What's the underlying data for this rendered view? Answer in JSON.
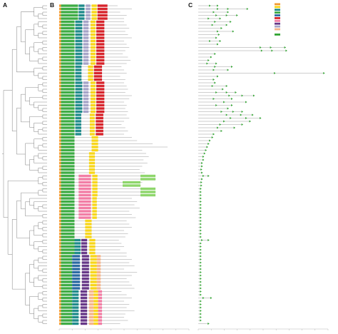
{
  "panels": {
    "a": "A",
    "b": "B",
    "c": "C"
  },
  "legend": {
    "motif_colors": [
      "#f29b2f",
      "#f8d61a",
      "#1f8b8b",
      "#3eac45",
      "#2b6aa3",
      "#d7232b",
      "#f27da5",
      "#673888",
      "#a6a4c8",
      "#f6b48a"
    ],
    "structure_color": "#33a533"
  },
  "b_axis": {
    "min": 0,
    "max": 1000
  },
  "c_axis": {
    "min": 0,
    "max": 10
  },
  "groups": [
    {
      "motifs": [
        [
          "#f29b2f",
          0,
          14
        ],
        [
          "#3eac45",
          14,
          145
        ],
        [
          "#1f8b8b",
          150,
          195
        ],
        [
          "#a6a4c8",
          205,
          240
        ],
        [
          "#f8d61a",
          250,
          290
        ],
        [
          "#d7232b",
          295,
          372
        ]
      ],
      "rows": [
        {
          "len": 450,
          "gene": 1.5,
          "marks": [
            0.9
          ]
        },
        {
          "len": 560,
          "gene": 3.8,
          "marks": [
            1.5,
            2.3
          ]
        },
        {
          "len": 470,
          "gene": 2.3,
          "marks": [
            1.2
          ]
        },
        {
          "len": 520,
          "gene": 3.0,
          "marks": [
            1.4,
            2.2
          ]
        },
        {
          "len": 500,
          "gene": 1.7,
          "marks": [
            0.8
          ]
        }
      ]
    },
    {
      "motifs": [
        [
          "#f29b2f",
          0,
          14
        ],
        [
          "#3eac45",
          14,
          118
        ],
        [
          "#1f8b8b",
          124,
          178
        ],
        [
          "#a6a4c8",
          186,
          226
        ],
        [
          "#f8d61a",
          242,
          280
        ],
        [
          "#d7232b",
          286,
          348
        ]
      ],
      "rows": [
        {
          "len": 500,
          "gene": 2.5,
          "marks": [
            1.3
          ]
        },
        {
          "len": 520,
          "gene": 2.2,
          "marks": [
            1.1
          ]
        },
        {
          "len": 540,
          "gene": 1.8
        },
        {
          "len": 510,
          "gene": 2.7,
          "marks": [
            1.5
          ]
        },
        {
          "len": 530,
          "gene": 1.6
        },
        {
          "len": 560,
          "gene": 1.4
        },
        {
          "len": 500,
          "gene": 1.7,
          "marks": [
            0.9
          ]
        },
        {
          "len": 520,
          "gene": 1.5
        },
        {
          "len": 540,
          "gene": 6.7,
          "marks": [
            4.8,
            5.6
          ]
        },
        {
          "len": 510,
          "gene": 6.8,
          "marks": [
            4.9,
            5.7
          ]
        },
        {
          "len": 490,
          "gene": 1.3
        },
        {
          "len": 530,
          "gene": 1.0
        },
        {
          "len": 550,
          "gene": 0.8
        },
        {
          "len": 520,
          "gene": 1.4,
          "marks": [
            0.7
          ]
        }
      ]
    },
    {
      "motifs": [
        [
          "#f29b2f",
          0,
          14
        ],
        [
          "#3eac45",
          14,
          118
        ],
        [
          "#1f8b8b",
          124,
          172
        ],
        [
          "#f8d61a",
          222,
          262
        ],
        [
          "#d7232b",
          268,
          330
        ]
      ],
      "rows": [
        {
          "len": 480,
          "gene": 2.6,
          "marks": [
            1.3
          ]
        },
        {
          "len": 500,
          "gene": 2.3,
          "marks": [
            1.2
          ]
        },
        {
          "len": 520,
          "gene": 9.7,
          "marks": [
            5.9
          ]
        },
        {
          "len": 470,
          "gene": 1.5
        },
        {
          "len": 510,
          "gene": 1.2
        }
      ]
    },
    {
      "motifs": [
        [
          "#f29b2f",
          0,
          14
        ],
        [
          "#3eac45",
          14,
          118
        ],
        [
          "#1f8b8b",
          124,
          178
        ],
        [
          "#a6a4c8",
          186,
          226
        ],
        [
          "#f8d61a",
          242,
          280
        ],
        [
          "#d7232b",
          286,
          348
        ]
      ],
      "rows": [
        {
          "len": 500,
          "gene": 1.3
        },
        {
          "len": 520,
          "gene": 2.2,
          "marks": [
            1.1
          ]
        },
        {
          "len": 530,
          "gene": 1.9
        },
        {
          "len": 510,
          "gene": 2.9,
          "marks": [
            1.4,
            2.2
          ]
        },
        {
          "len": 560,
          "gene": 4.3,
          "marks": [
            2.4,
            3.4
          ]
        },
        {
          "len": 540,
          "gene": 2.6,
          "marks": [
            1.2
          ]
        },
        {
          "len": 500,
          "gene": 3.7,
          "marks": [
            2.0
          ]
        },
        {
          "len": 520,
          "gene": 2.6,
          "marks": [
            1.4
          ]
        },
        {
          "len": 510,
          "gene": 2.3
        },
        {
          "len": 530,
          "gene": 3.4,
          "marks": [
            1.8,
            2.7
          ]
        }
      ]
    },
    {
      "motifs": [
        [
          "#f29b2f",
          0,
          14
        ],
        [
          "#3eac45",
          14,
          118
        ],
        [
          "#1f8b8b",
          124,
          170
        ],
        [
          "#f8d61a",
          236,
          274
        ],
        [
          "#d7232b",
          282,
          340
        ]
      ],
      "rows": [
        {
          "len": 520,
          "gene": 4.2,
          "marks": [
            2.2,
            3.3
          ]
        },
        {
          "len": 540,
          "gene": 4.8,
          "marks": [
            2.5,
            3.7
          ]
        },
        {
          "len": 500,
          "gene": 4.0,
          "marks": [
            2.0
          ]
        },
        {
          "len": 480,
          "gene": 3.4,
          "marks": [
            1.7
          ]
        },
        {
          "len": 510,
          "gene": 2.8,
          "marks": [
            1.5
          ]
        },
        {
          "len": 530,
          "gene": 1.8
        },
        {
          "len": 500,
          "gene": 1.2
        }
      ]
    },
    {
      "motifs": [
        [
          "#f29b2f",
          0,
          14
        ],
        [
          "#3eac45",
          14,
          118
        ],
        [
          "#f8d61a",
          250,
          300
        ]
      ],
      "rows": [
        {
          "len": 560,
          "gene": 1.1
        },
        {
          "len": 600,
          "gene": 0.9
        },
        {
          "len": 720,
          "gene": 0.8
        },
        {
          "len": 835,
          "gene": 0.7
        },
        {
          "len": 640,
          "gene": 0.6
        }
      ]
    },
    {
      "motifs": [
        [
          "#f29b2f",
          0,
          14
        ],
        [
          "#3eac45",
          14,
          118
        ],
        [
          "#f8d61a",
          230,
          275
        ]
      ],
      "rows": [
        {
          "len": 670,
          "gene": 0.5
        },
        {
          "len": 690,
          "gene": 0.4
        },
        {
          "len": 650,
          "gene": 0.4
        },
        {
          "len": 680,
          "gene": 0.3
        },
        {
          "len": 640,
          "gene": 0.3
        },
        {
          "len": 620,
          "gene": 0.25
        },
        {
          "len": 660,
          "gene": 0.3
        }
      ]
    },
    {
      "motifs": [
        [
          "#f29b2f",
          0,
          14
        ],
        [
          "#3eac45",
          14,
          118
        ],
        [
          "#f27da5",
          150,
          245
        ],
        [
          "#f8d61a",
          255,
          295
        ],
        [
          "#8ed66b",
          626,
          742
        ]
      ],
      "rows": [
        {
          "len": 742,
          "gene": 0.8,
          "marks": [
            0.4
          ]
        },
        {
          "len": 745,
          "gene": 0.3
        }
      ]
    },
    {
      "motifs": [
        [
          "#f29b2f",
          0,
          14
        ],
        [
          "#3eac45",
          14,
          118
        ],
        [
          "#f27da5",
          150,
          245
        ],
        [
          "#f8d61a",
          255,
          295
        ],
        [
          "#8ed66b",
          489,
          626
        ]
      ],
      "rows": [
        {
          "len": 640,
          "gene": 0.25
        },
        {
          "len": 630,
          "gene": 0.25
        }
      ]
    },
    {
      "motifs": [
        [
          "#f29b2f",
          0,
          14
        ],
        [
          "#3eac45",
          14,
          118
        ],
        [
          "#f27da5",
          150,
          245
        ],
        [
          "#f8d61a",
          255,
          295
        ],
        [
          "#8ed66b",
          626,
          742
        ]
      ],
      "rows": [
        {
          "len": 742,
          "gene": 0.2
        },
        {
          "len": 745,
          "gene": 0.2
        },
        {
          "len": 742,
          "gene": 0.2
        }
      ]
    },
    {
      "motifs": [
        [
          "#f29b2f",
          0,
          14
        ],
        [
          "#3eac45",
          14,
          118
        ],
        [
          "#f27da5",
          150,
          245
        ],
        [
          "#f8d61a",
          255,
          290
        ]
      ],
      "rows": [
        {
          "len": 560,
          "gene": 0.2
        },
        {
          "len": 600,
          "gene": 0.2
        },
        {
          "len": 580,
          "gene": 0.2
        },
        {
          "len": 620,
          "gene": 0.2
        },
        {
          "len": 540,
          "gene": 0.2
        },
        {
          "len": 560,
          "gene": 0.2
        },
        {
          "len": 590,
          "gene": 0.2
        }
      ]
    },
    {
      "motifs": [
        [
          "#f29b2f",
          0,
          14
        ],
        [
          "#3eac45",
          14,
          118
        ],
        [
          "#f8d61a",
          200,
          250
        ]
      ],
      "rows": [
        {
          "len": 520,
          "gene": 0.2
        },
        {
          "len": 540,
          "gene": 0.2
        },
        {
          "len": 560,
          "gene": 0.2
        },
        {
          "len": 500,
          "gene": 0.2
        },
        {
          "len": 530,
          "gene": 0.2
        },
        {
          "len": 510,
          "gene": 0.2
        }
      ]
    },
    {
      "motifs": [
        [
          "#f29b2f",
          0,
          14
        ],
        [
          "#3eac45",
          14,
          118
        ],
        [
          "#1f8b8b",
          118,
          165
        ],
        [
          "#673888",
          170,
          215
        ],
        [
          "#f8d61a",
          232,
          278
        ]
      ],
      "rows": [
        {
          "len": 460,
          "gene": 0.8,
          "marks": [
            0.3
          ]
        },
        {
          "len": 480,
          "gene": 0.2
        },
        {
          "len": 500,
          "gene": 0.2
        },
        {
          "len": 470,
          "gene": 0.2
        },
        {
          "len": 520,
          "gene": 0.2
        }
      ]
    },
    {
      "motifs": [
        [
          "#f29b2f",
          0,
          14
        ],
        [
          "#3eac45",
          14,
          100
        ],
        [
          "#2b6aa3",
          100,
          160
        ],
        [
          "#673888",
          175,
          230
        ],
        [
          "#f8d61a",
          240,
          290
        ],
        [
          "#f6b48a",
          290,
          320
        ]
      ],
      "rows": [
        {
          "len": 520,
          "gene": 0.2
        },
        {
          "len": 560,
          "gene": 0.2
        },
        {
          "len": 540,
          "gene": 0.2
        },
        {
          "len": 580,
          "gene": 0.2
        },
        {
          "len": 500,
          "gene": 0.2
        },
        {
          "len": 600,
          "gene": 0.2
        },
        {
          "len": 560,
          "gene": 0.2
        },
        {
          "len": 520,
          "gene": 0.2
        },
        {
          "len": 540,
          "gene": 0.2
        },
        {
          "len": 560,
          "gene": 0.2
        },
        {
          "len": 580,
          "gene": 0.2
        }
      ]
    },
    {
      "motifs": [
        [
          "#f29b2f",
          0,
          14
        ],
        [
          "#3eac45",
          14,
          100
        ],
        [
          "#1f8b8b",
          100,
          150
        ],
        [
          "#673888",
          165,
          215
        ],
        [
          "#f6b48a",
          230,
          265
        ],
        [
          "#f8d61a",
          265,
          300
        ],
        [
          "#f27da5",
          300,
          330
        ]
      ],
      "rows": [
        {
          "len": 480,
          "gene": 0.2
        },
        {
          "len": 520,
          "gene": 0.2
        },
        {
          "len": 560,
          "gene": 1.0,
          "marks": [
            0.4
          ]
        },
        {
          "len": 500,
          "gene": 0.2
        },
        {
          "len": 540,
          "gene": 0.2
        },
        {
          "len": 520,
          "gene": 0.2
        },
        {
          "len": 580,
          "gene": 0.2
        },
        {
          "len": 510,
          "gene": 0.2
        },
        {
          "len": 500,
          "gene": 0.2
        },
        {
          "len": 530,
          "gene": 0.2
        },
        {
          "len": 470,
          "gene": 0.8
        }
      ]
    }
  ]
}
